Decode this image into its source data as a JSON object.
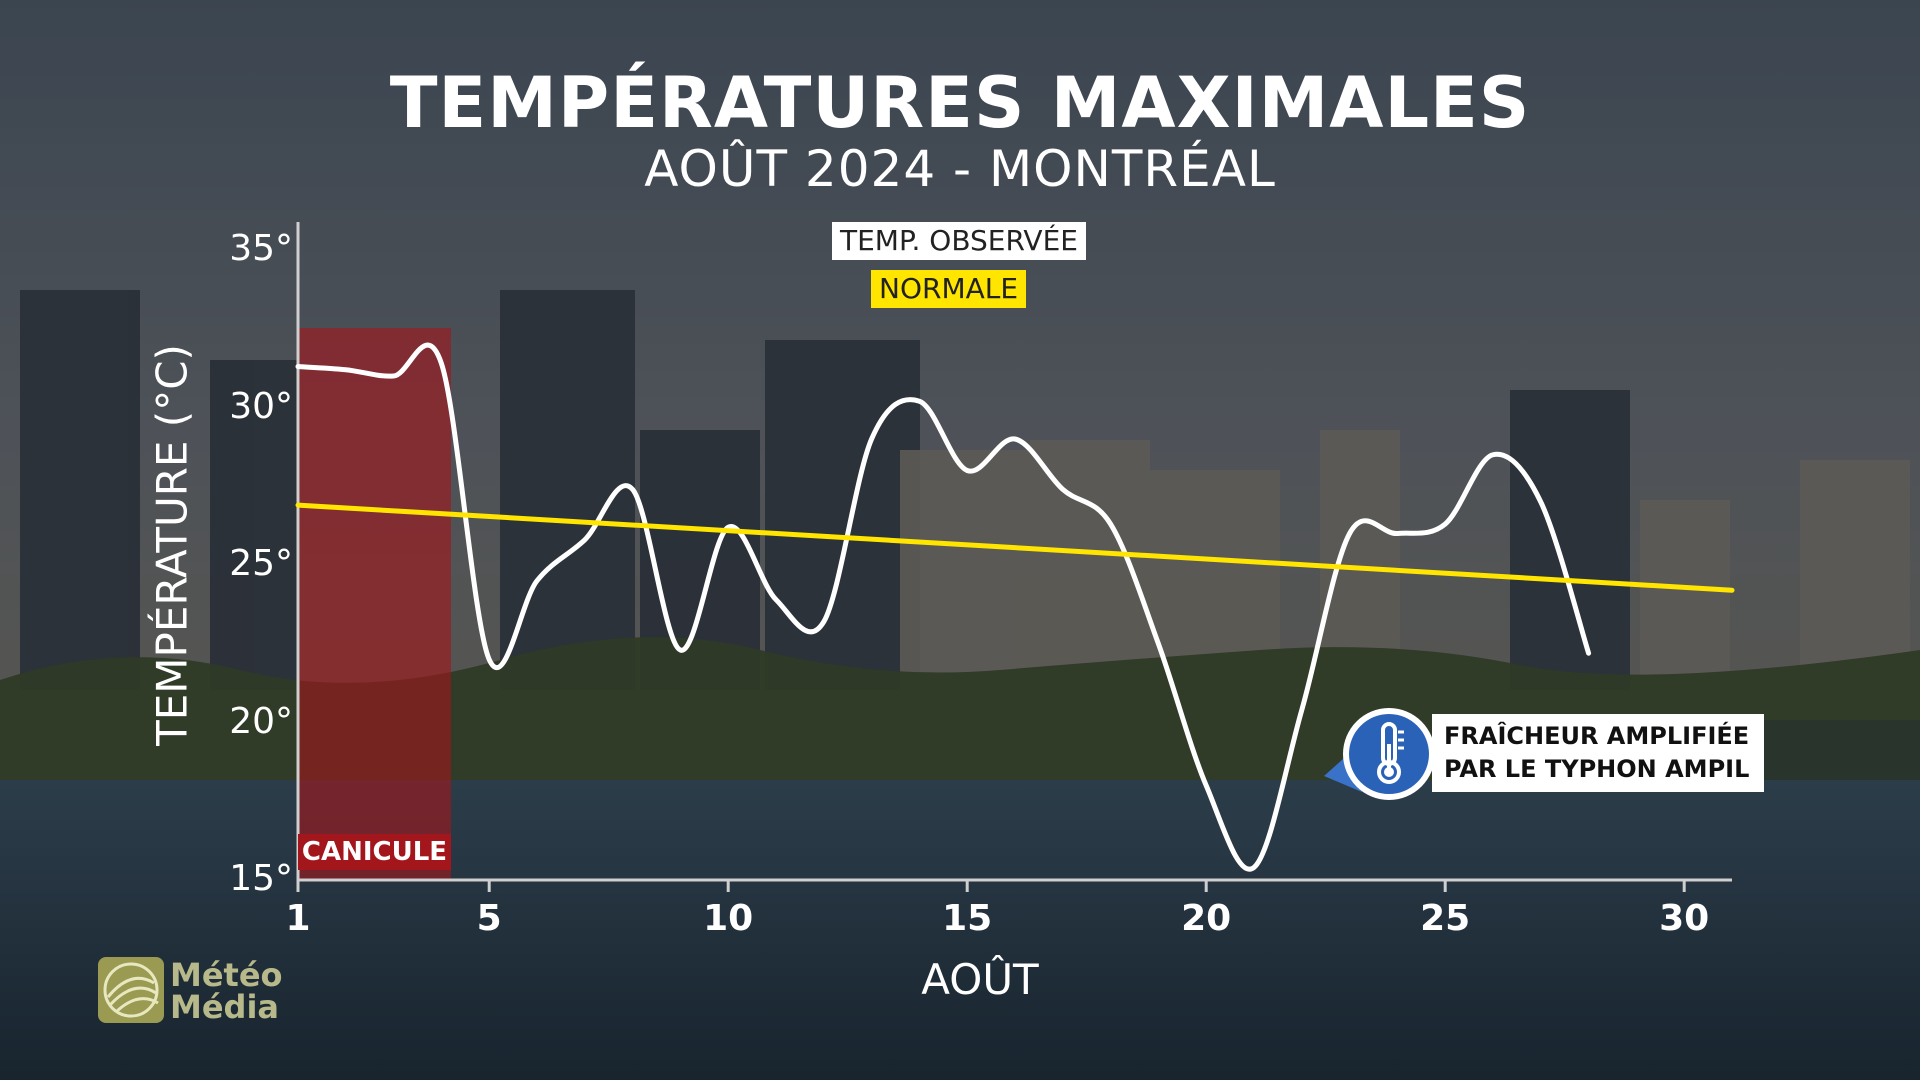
{
  "title": "TEMPÉRATURES MAXIMALES",
  "subtitle": "AOÛT 2024 - MONTRÉAL",
  "legend": {
    "observed": "TEMP. OBSERVÉE",
    "normal": "NORMALE"
  },
  "annotation": {
    "line1": "FRAÎCHEUR AMPLIFIÉE",
    "line2": "PAR LE TYPHON AMPIL",
    "icon": "thermometer-icon"
  },
  "highlight": {
    "label": "CANICULE",
    "x_start": 1,
    "x_end": 4.2,
    "color": "#a2161c"
  },
  "logo": {
    "line1": "Météo",
    "line2": "Média"
  },
  "colors": {
    "observed": "#ffffff",
    "normal": "#ffe500",
    "annotation": "#2a62b8"
  },
  "chart_data": {
    "type": "line",
    "title": "TEMPÉRATURES MAXIMALES",
    "subtitle": "AOÛT 2024 - MONTRÉAL",
    "xlabel": "AOÛT",
    "ylabel": "TEMPÉRATURE (°C)",
    "xlim": [
      1,
      31
    ],
    "ylim": [
      15,
      35
    ],
    "x_ticks": [
      1,
      5,
      10,
      15,
      20,
      25,
      30
    ],
    "y_ticks": [
      15,
      20,
      25,
      30,
      35
    ],
    "y_tick_labels": [
      "15°",
      "20°",
      "25°",
      "30°",
      "35°"
    ],
    "grid": false,
    "legend_position": "top-center",
    "series": [
      {
        "name": "TEMP. OBSERVÉE",
        "color": "#ffffff",
        "x": [
          1,
          2,
          3,
          4,
          5,
          6,
          7,
          8,
          9,
          10,
          11,
          12,
          13,
          14,
          15,
          16,
          17,
          18,
          19,
          20,
          21,
          22,
          23,
          24,
          25,
          26,
          27,
          28
        ],
        "values": [
          31.3,
          31.2,
          31.0,
          31.4,
          22.0,
          24.5,
          25.8,
          27.4,
          22.3,
          26.2,
          23.9,
          23.2,
          29.0,
          30.2,
          28.0,
          29.0,
          27.4,
          26.3,
          22.5,
          18.0,
          15.4,
          20.4,
          26.0,
          26.0,
          26.3,
          28.5,
          27.0,
          22.2
        ]
      },
      {
        "name": "NORMALE",
        "color": "#ffe500",
        "x": [
          1,
          31
        ],
        "values": [
          26.9,
          24.2
        ]
      }
    ]
  }
}
